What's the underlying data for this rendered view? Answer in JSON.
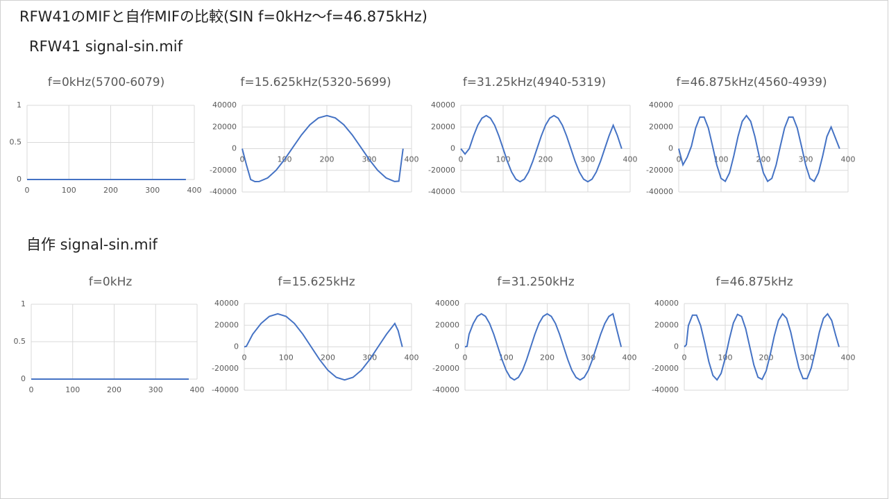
{
  "title": "RFW41のMIFと自作MIFの比較(SIN f=0kHz～f=46.875kHz)",
  "sections": [
    "RFW41 signal-sin.mif",
    "自作 signal-sin.mif"
  ],
  "chart_data": [
    {
      "type": "line",
      "title": "f=0kHz(5700-6079)",
      "x": [
        0,
        380
      ],
      "values": [
        0,
        0
      ],
      "color": "#4472c4",
      "xlim": [
        0,
        400
      ],
      "xticks": [
        0,
        100,
        200,
        300,
        400
      ],
      "ylim": [
        0,
        1
      ],
      "yticks": [
        0,
        0.5,
        1
      ],
      "grid": true
    },
    {
      "type": "line",
      "title": "f=15.625kHz(5320-5699)",
      "x": [
        0,
        10,
        20,
        30,
        40,
        60,
        80,
        100,
        120,
        140,
        160,
        180,
        200,
        220,
        240,
        260,
        280,
        300,
        320,
        340,
        360,
        370,
        380
      ],
      "values": [
        0,
        -15000,
        -28500,
        -30400,
        -30350,
        -27100,
        -19980,
        -9970,
        1430,
        12660,
        22080,
        28330,
        30500,
        28330,
        22080,
        12660,
        1430,
        -9970,
        -19980,
        -27100,
        -30350,
        -30000,
        0
      ],
      "color": "#4472c4",
      "xlim": [
        0,
        400
      ],
      "xticks": [
        0,
        100,
        200,
        300,
        400
      ],
      "ylim": [
        -40000,
        40000
      ],
      "yticks": [
        -40000,
        -20000,
        0,
        20000,
        40000
      ],
      "grid": true
    },
    {
      "type": "line",
      "title": "f=31.25kHz(4940-5319)",
      "x": [
        0,
        10,
        20,
        30,
        40,
        50,
        60,
        70,
        80,
        90,
        100,
        110,
        120,
        130,
        140,
        150,
        160,
        170,
        180,
        190,
        200,
        210,
        220,
        230,
        240,
        250,
        260,
        270,
        280,
        290,
        300,
        310,
        320,
        330,
        340,
        350,
        360,
        370,
        380
      ],
      "values": [
        0,
        -5000,
        0,
        11680,
        21570,
        28180,
        30500,
        28180,
        21570,
        11680,
        0,
        -11680,
        -21570,
        -28180,
        -30500,
        -28180,
        -21570,
        -11680,
        0,
        11680,
        21570,
        28180,
        30500,
        28180,
        21570,
        11680,
        0,
        -11680,
        -21570,
        -28180,
        -30500,
        -28180,
        -21570,
        -11680,
        0,
        11680,
        21570,
        12000,
        0
      ],
      "color": "#4472c4",
      "xlim": [
        0,
        400
      ],
      "xticks": [
        0,
        100,
        200,
        300,
        400
      ],
      "ylim": [
        -40000,
        40000
      ],
      "yticks": [
        -40000,
        -20000,
        0,
        20000,
        40000
      ],
      "grid": true
    },
    {
      "type": "line",
      "title": "f=46.875kHz(4560-4939)",
      "x": [
        0,
        10,
        20,
        30,
        40,
        50,
        60,
        70,
        80,
        90,
        100,
        110,
        120,
        130,
        140,
        150,
        160,
        170,
        180,
        190,
        200,
        210,
        220,
        230,
        240,
        250,
        260,
        270,
        280,
        290,
        300,
        310,
        320,
        330,
        340,
        350,
        360,
        370,
        380
      ],
      "values": [
        0,
        -15000,
        -8000,
        2290,
        19030,
        29150,
        29150,
        19030,
        2290,
        -15250,
        -27480,
        -30160,
        -22330,
        -6810,
        11130,
        25200,
        30500,
        25200,
        11130,
        -6810,
        -22330,
        -30160,
        -27480,
        -15250,
        2290,
        19030,
        29150,
        29150,
        19030,
        2290,
        -15250,
        -27480,
        -30160,
        -22330,
        -6810,
        11130,
        20000,
        10000,
        0
      ],
      "color": "#4472c4",
      "xlim": [
        0,
        400
      ],
      "xticks": [
        0,
        100,
        200,
        300,
        400
      ],
      "ylim": [
        -40000,
        40000
      ],
      "yticks": [
        -40000,
        -20000,
        0,
        20000,
        40000
      ],
      "grid": true
    },
    {
      "type": "line",
      "title": "f=0kHz",
      "x": [
        0,
        380
      ],
      "values": [
        0,
        0
      ],
      "color": "#4472c4",
      "xlim": [
        0,
        400
      ],
      "xticks": [
        0,
        100,
        200,
        300,
        400
      ],
      "ylim": [
        0,
        1
      ],
      "yticks": [
        0,
        0.5,
        1
      ],
      "grid": true
    },
    {
      "type": "line",
      "title": "f=15.625kHz",
      "x": [
        0,
        5,
        20,
        40,
        60,
        80,
        100,
        120,
        140,
        160,
        180,
        200,
        220,
        240,
        260,
        280,
        300,
        320,
        340,
        360,
        368,
        378
      ],
      "values": [
        0,
        500,
        11670,
        21570,
        28180,
        30500,
        28180,
        21570,
        11670,
        0,
        -11670,
        -21570,
        -28180,
        -30500,
        -28180,
        -21570,
        -11670,
        0,
        11670,
        21570,
        15000,
        0
      ],
      "color": "#4472c4",
      "xlim": [
        0,
        400
      ],
      "xticks": [
        0,
        100,
        200,
        300,
        400
      ],
      "ylim": [
        -40000,
        40000
      ],
      "yticks": [
        -40000,
        -20000,
        0,
        20000,
        40000
      ],
      "grid": true
    },
    {
      "type": "line",
      "title": "f=31.250kHz",
      "x": [
        0,
        5,
        10,
        20,
        30,
        40,
        50,
        60,
        70,
        80,
        90,
        100,
        110,
        120,
        130,
        140,
        150,
        160,
        170,
        180,
        190,
        200,
        210,
        220,
        230,
        240,
        250,
        260,
        270,
        280,
        290,
        300,
        310,
        320,
        330,
        340,
        350,
        360,
        370,
        380
      ],
      "values": [
        0,
        500,
        11670,
        21570,
        28180,
        30500,
        28180,
        21570,
        11670,
        0,
        -11670,
        -21570,
        -28180,
        -30500,
        -28180,
        -21570,
        -11670,
        0,
        11670,
        21570,
        28180,
        30500,
        28180,
        21570,
        11670,
        0,
        -11670,
        -21570,
        -28180,
        -30500,
        -28180,
        -21570,
        -11670,
        0,
        11670,
        21570,
        28180,
        30500,
        15000,
        0
      ],
      "color": "#4472c4",
      "xlim": [
        0,
        400
      ],
      "xticks": [
        0,
        100,
        200,
        300,
        400
      ],
      "ylim": [
        -40000,
        40000
      ],
      "yticks": [
        -40000,
        -20000,
        0,
        20000,
        40000
      ],
      "grid": true
    },
    {
      "type": "line",
      "title": "f=46.875kHz",
      "x": [
        0,
        5,
        10,
        20,
        30,
        40,
        50,
        60,
        70,
        80,
        90,
        100,
        110,
        120,
        130,
        140,
        150,
        160,
        170,
        180,
        190,
        200,
        210,
        220,
        230,
        240,
        250,
        260,
        270,
        280,
        290,
        300,
        310,
        320,
        330,
        340,
        350,
        360,
        370,
        378
      ],
      "values": [
        0,
        2000,
        19610,
        29220,
        29220,
        19610,
        3560,
        -13700,
        -26410,
        -30450,
        -24450,
        -10430,
        7020,
        22190,
        30040,
        28010,
        16750,
        0,
        -16750,
        -28010,
        -30040,
        -22190,
        -7020,
        10430,
        24450,
        30450,
        26410,
        13700,
        -3560,
        -19610,
        -29220,
        -29220,
        -19610,
        -3560,
        13700,
        26410,
        30450,
        24450,
        10430,
        0
      ],
      "color": "#4472c4",
      "xlim": [
        0,
        400
      ],
      "xticks": [
        0,
        100,
        200,
        300,
        400
      ],
      "ylim": [
        -40000,
        40000
      ],
      "yticks": [
        -40000,
        -20000,
        0,
        20000,
        40000
      ],
      "grid": true
    }
  ]
}
